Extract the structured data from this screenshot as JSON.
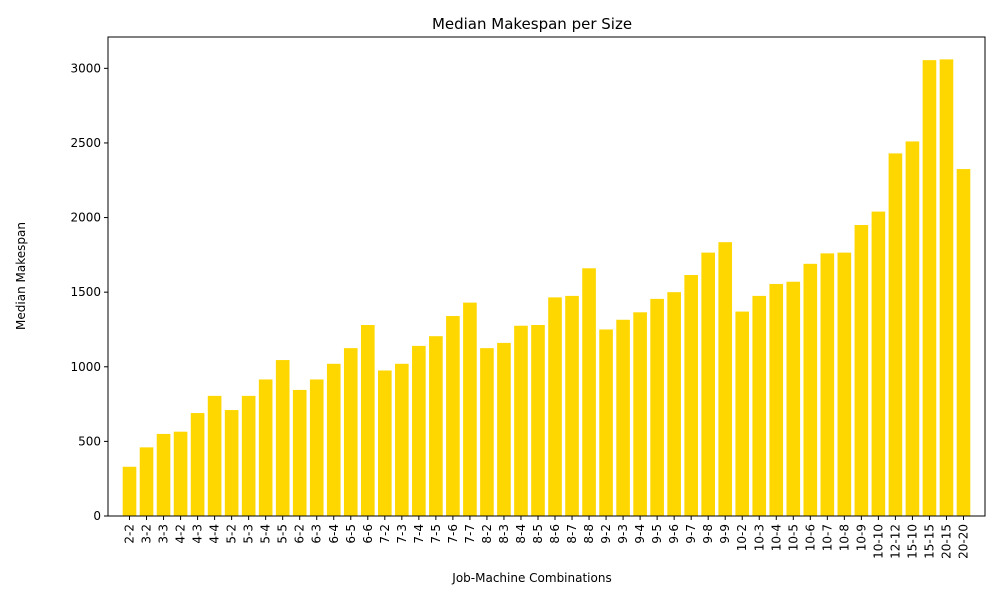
{
  "chart_data": {
    "type": "bar",
    "title": "Median Makespan per Size",
    "xlabel": "Job-Machine Combinations",
    "ylabel": "Median Makespan",
    "ylim": [
      0,
      3210
    ],
    "yticks": [
      0,
      500,
      1000,
      1500,
      2000,
      2500,
      3000
    ],
    "bar_color": "#FFD700",
    "categories": [
      "2-2",
      "3-2",
      "3-3",
      "4-2",
      "4-3",
      "4-4",
      "5-2",
      "5-3",
      "5-4",
      "5-5",
      "6-2",
      "6-3",
      "6-4",
      "6-5",
      "6-6",
      "7-2",
      "7-3",
      "7-4",
      "7-5",
      "7-6",
      "7-7",
      "8-2",
      "8-3",
      "8-4",
      "8-5",
      "8-6",
      "8-7",
      "8-8",
      "9-2",
      "9-3",
      "9-4",
      "9-5",
      "9-6",
      "9-7",
      "9-8",
      "9-9",
      "10-2",
      "10-3",
      "10-4",
      "10-5",
      "10-6",
      "10-7",
      "10-8",
      "10-9",
      "10-10",
      "12-12",
      "15-10",
      "15-15",
      "20-15",
      "20-20"
    ],
    "values": [
      330,
      460,
      550,
      565,
      690,
      805,
      710,
      805,
      915,
      1045,
      845,
      915,
      1020,
      1125,
      1280,
      975,
      1020,
      1140,
      1205,
      1340,
      1430,
      1125,
      1160,
      1275,
      1280,
      1465,
      1475,
      1660,
      1250,
      1315,
      1365,
      1455,
      1500,
      1615,
      1765,
      1835,
      1370,
      1475,
      1555,
      1570,
      1690,
      1760,
      1765,
      1950,
      2040,
      2430,
      2510,
      3055,
      3060,
      2325
    ],
    "grid": false,
    "legend": "none"
  }
}
